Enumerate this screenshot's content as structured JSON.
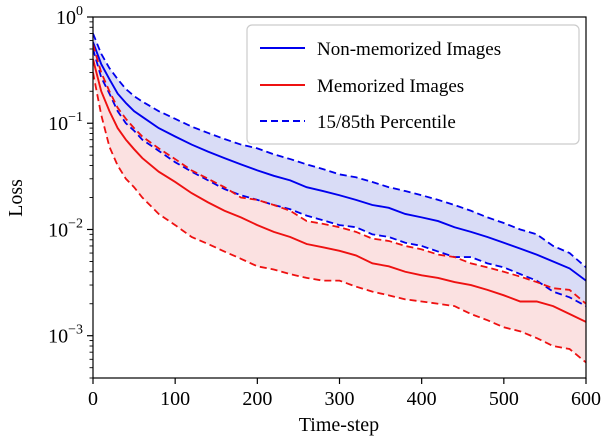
{
  "chart_data": {
    "type": "line",
    "xlabel": "Time-step",
    "ylabel": "Loss",
    "xlim": [
      0,
      600
    ],
    "ylim": [
      0.0004,
      1.0
    ],
    "yscale": "log",
    "xticks": [
      0,
      100,
      200,
      300,
      400,
      500,
      600
    ],
    "xtick_labels": [
      "0",
      "100",
      "200",
      "300",
      "400",
      "500",
      "600"
    ],
    "yticks": [
      0.001,
      0.01,
      0.1,
      1.0
    ],
    "ytick_labels": [
      {
        "base": "10",
        "exp": "−3"
      },
      {
        "base": "10",
        "exp": "−2"
      },
      {
        "base": "10",
        "exp": "−1"
      },
      {
        "base": "10",
        "exp": "0"
      }
    ],
    "grid": false,
    "legend": {
      "placement": "top-right",
      "entries": [
        {
          "label": "Non-memorized Images",
          "color": "#0000ee",
          "style": "solid"
        },
        {
          "label": "Memorized Images",
          "color": "#ee1111",
          "style": "solid"
        },
        {
          "label": "15/85th Percentile",
          "color": "#0000ee",
          "style": "dashed"
        }
      ]
    },
    "x": [
      0,
      10,
      20,
      30,
      40,
      50,
      60,
      80,
      100,
      120,
      140,
      160,
      180,
      200,
      220,
      240,
      260,
      280,
      300,
      320,
      340,
      360,
      380,
      400,
      420,
      440,
      460,
      480,
      500,
      520,
      540,
      560,
      580,
      600
    ],
    "series": [
      {
        "name": "Non-memorized Images",
        "color": "#0000ee",
        "style": "solid",
        "band_fill": "#c9cdf2",
        "values": [
          0.58,
          0.36,
          0.26,
          0.19,
          0.155,
          0.13,
          0.115,
          0.09,
          0.075,
          0.063,
          0.054,
          0.047,
          0.041,
          0.036,
          0.032,
          0.029,
          0.025,
          0.023,
          0.021,
          0.019,
          0.017,
          0.016,
          0.014,
          0.013,
          0.012,
          0.0105,
          0.0095,
          0.0085,
          0.0075,
          0.0066,
          0.0058,
          0.005,
          0.0043,
          0.0033
        ],
        "p15": [
          0.5,
          0.27,
          0.19,
          0.13,
          0.1,
          0.085,
          0.07,
          0.055,
          0.043,
          0.035,
          0.029,
          0.024,
          0.021,
          0.019,
          0.017,
          0.0155,
          0.0135,
          0.0122,
          0.011,
          0.0105,
          0.009,
          0.0085,
          0.0075,
          0.007,
          0.0062,
          0.0055,
          0.0055,
          0.0048,
          0.0044,
          0.0038,
          0.0033,
          0.0026,
          0.0023,
          0.0019
        ],
        "p85": [
          0.7,
          0.45,
          0.33,
          0.26,
          0.21,
          0.18,
          0.16,
          0.13,
          0.11,
          0.093,
          0.081,
          0.071,
          0.063,
          0.058,
          0.051,
          0.046,
          0.041,
          0.037,
          0.033,
          0.031,
          0.028,
          0.025,
          0.023,
          0.021,
          0.019,
          0.017,
          0.015,
          0.013,
          0.0115,
          0.01,
          0.009,
          0.007,
          0.006,
          0.0044
        ]
      },
      {
        "name": "Memorized Images",
        "color": "#ee1111",
        "style": "solid",
        "band_fill": "#f9d4d4",
        "values": [
          0.4,
          0.2,
          0.13,
          0.09,
          0.07,
          0.057,
          0.047,
          0.035,
          0.028,
          0.022,
          0.018,
          0.015,
          0.013,
          0.011,
          0.0095,
          0.0085,
          0.0073,
          0.0068,
          0.0063,
          0.0057,
          0.0048,
          0.0045,
          0.004,
          0.0037,
          0.0035,
          0.0032,
          0.003,
          0.0027,
          0.0024,
          0.0021,
          0.0021,
          0.0019,
          0.0016,
          0.00135
        ],
        "p15": [
          0.3,
          0.12,
          0.06,
          0.04,
          0.03,
          0.025,
          0.02,
          0.014,
          0.011,
          0.0085,
          0.0073,
          0.0062,
          0.0053,
          0.0045,
          0.0042,
          0.0038,
          0.0035,
          0.0033,
          0.0033,
          0.0029,
          0.0026,
          0.0024,
          0.0022,
          0.0021,
          0.002,
          0.0019,
          0.0016,
          0.0014,
          0.0012,
          0.0011,
          0.00095,
          0.0008,
          0.00075,
          0.00056
        ],
        "p85": [
          0.55,
          0.3,
          0.2,
          0.14,
          0.11,
          0.09,
          0.075,
          0.058,
          0.046,
          0.036,
          0.03,
          0.025,
          0.02,
          0.019,
          0.017,
          0.015,
          0.012,
          0.0113,
          0.0105,
          0.0095,
          0.0082,
          0.0078,
          0.007,
          0.0065,
          0.0058,
          0.0055,
          0.0048,
          0.0044,
          0.004,
          0.0036,
          0.0032,
          0.0028,
          0.0027,
          0.002
        ]
      }
    ]
  }
}
